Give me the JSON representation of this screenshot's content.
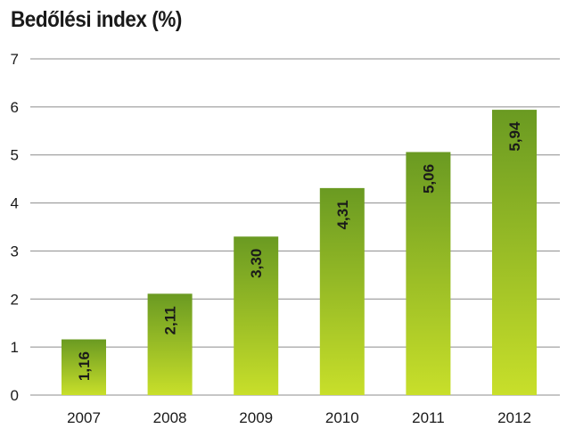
{
  "chart_data": {
    "type": "bar",
    "title": "Bedőlési index (%)",
    "categories": [
      "2007",
      "2008",
      "2009",
      "2010",
      "2011",
      "2012"
    ],
    "values": [
      1.16,
      2.11,
      3.3,
      4.31,
      5.06,
      5.94
    ],
    "data_labels": [
      "1,16",
      "2,11",
      "3,30",
      "4,31",
      "5,06",
      "5,94"
    ],
    "yticks": [
      "0",
      "1",
      "2",
      "3",
      "4",
      "5",
      "6",
      "7"
    ],
    "ylim": [
      0,
      7
    ],
    "xlabel": "",
    "ylabel": "",
    "grid": true,
    "legend": false,
    "colors": {
      "bar_top": "#6a9a22",
      "bar_bottom": "#c8df2a",
      "grid": "#8c8c8c",
      "text": "#1a1a1a"
    }
  }
}
